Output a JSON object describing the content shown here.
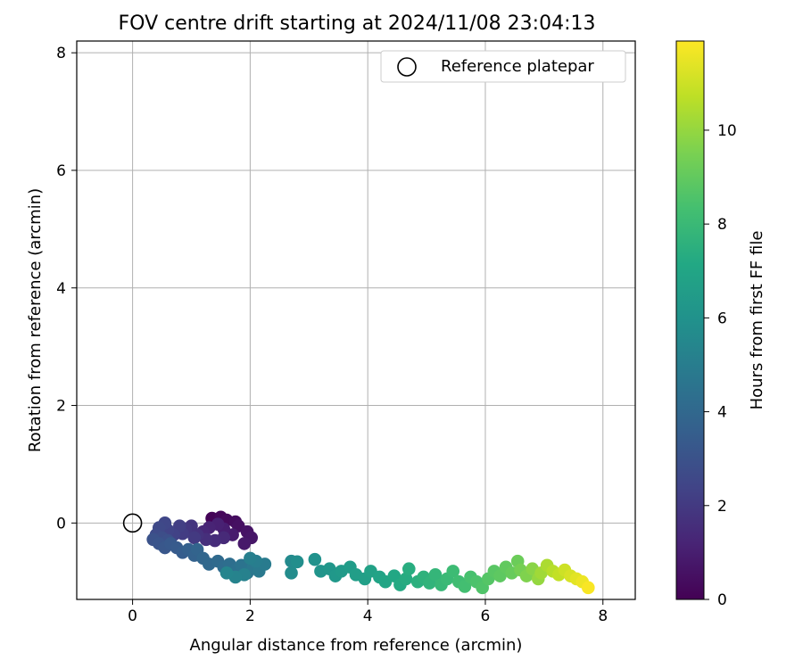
{
  "chart_data": {
    "type": "scatter",
    "title": "FOV centre drift starting at 2024/11/08 23:04:13",
    "xlabel": "Angular distance from reference (arcmin)",
    "ylabel": "Rotation from reference (arcmin)",
    "xlim": [
      -0.95,
      8.55
    ],
    "ylim": [
      -1.3,
      8.2
    ],
    "xticks": [
      0,
      2,
      4,
      6,
      8
    ],
    "yticks": [
      0,
      2,
      4,
      6,
      8
    ],
    "grid": true,
    "legend": {
      "placement": "top-right",
      "entries": [
        "Reference platepar"
      ]
    },
    "colorbar": {
      "label": "Hours from first FF file",
      "range": [
        0,
        11.9
      ],
      "ticks": [
        0,
        2,
        4,
        6,
        8,
        10
      ],
      "colormap": "viridis"
    },
    "reference_point": {
      "label": "Reference platepar",
      "x": 0,
      "y": 0
    },
    "series": [
      {
        "values_fields": [
          "x",
          "y",
          "hours"
        ],
        "points": [
          [
            1.35,
            0.08,
            0.1
          ],
          [
            1.5,
            0.1,
            0.2
          ],
          [
            1.6,
            0.05,
            0.3
          ],
          [
            1.75,
            0.02,
            0.4
          ],
          [
            1.8,
            -0.05,
            0.5
          ],
          [
            1.95,
            -0.15,
            0.6
          ],
          [
            2.02,
            -0.25,
            0.7
          ],
          [
            1.9,
            -0.35,
            0.8
          ],
          [
            1.7,
            -0.2,
            0.9
          ],
          [
            1.55,
            -0.1,
            1.0
          ],
          [
            1.45,
            -0.02,
            1.1
          ],
          [
            1.3,
            -0.08,
            1.2
          ],
          [
            1.2,
            -0.15,
            1.3
          ],
          [
            1.55,
            -0.25,
            1.4
          ],
          [
            1.4,
            -0.3,
            1.5
          ],
          [
            1.25,
            -0.28,
            1.6
          ],
          [
            1.1,
            -0.2,
            1.7
          ],
          [
            1.0,
            -0.05,
            1.8
          ],
          [
            0.9,
            -0.1,
            1.9
          ],
          [
            1.05,
            -0.25,
            2.0
          ],
          [
            0.85,
            -0.18,
            2.1
          ],
          [
            0.8,
            -0.05,
            2.2
          ],
          [
            0.7,
            -0.2,
            2.3
          ],
          [
            0.6,
            -0.12,
            2.4
          ],
          [
            0.55,
            0.0,
            2.5
          ],
          [
            0.45,
            -0.08,
            2.6
          ],
          [
            0.4,
            -0.2,
            2.7
          ],
          [
            0.5,
            -0.25,
            2.8
          ],
          [
            0.6,
            -0.3,
            2.9
          ],
          [
            0.35,
            -0.28,
            3.0
          ],
          [
            0.45,
            -0.35,
            3.1
          ],
          [
            0.55,
            -0.42,
            3.2
          ],
          [
            0.65,
            -0.35,
            3.3
          ],
          [
            0.75,
            -0.42,
            3.4
          ],
          [
            0.85,
            -0.5,
            3.5
          ],
          [
            0.95,
            -0.45,
            3.6
          ],
          [
            1.05,
            -0.55,
            3.7
          ],
          [
            1.1,
            -0.45,
            3.8
          ],
          [
            1.2,
            -0.6,
            3.9
          ],
          [
            1.3,
            -0.7,
            4.0
          ],
          [
            1.45,
            -0.65,
            4.1
          ],
          [
            1.55,
            -0.75,
            4.2
          ],
          [
            1.65,
            -0.7,
            4.3
          ],
          [
            1.75,
            -0.8,
            4.4
          ],
          [
            1.85,
            -0.72,
            4.5
          ],
          [
            1.95,
            -0.85,
            4.6
          ],
          [
            2.05,
            -0.75,
            4.7
          ],
          [
            2.15,
            -0.82,
            4.8
          ],
          [
            2.25,
            -0.7,
            4.9
          ],
          [
            2.1,
            -0.65,
            5.0
          ],
          [
            2.0,
            -0.6,
            5.1
          ],
          [
            1.9,
            -0.88,
            5.2
          ],
          [
            1.75,
            -0.92,
            5.3
          ],
          [
            1.6,
            -0.85,
            5.4
          ],
          [
            2.7,
            -0.65,
            5.6
          ],
          [
            2.7,
            -0.85,
            5.7
          ],
          [
            2.8,
            -0.66,
            5.8
          ],
          [
            3.1,
            -0.62,
            6.0
          ],
          [
            3.2,
            -0.82,
            6.1
          ],
          [
            3.35,
            -0.78,
            6.2
          ],
          [
            3.45,
            -0.9,
            6.3
          ],
          [
            3.55,
            -0.82,
            6.4
          ],
          [
            3.7,
            -0.75,
            6.5
          ],
          [
            3.8,
            -0.88,
            6.6
          ],
          [
            3.95,
            -0.95,
            6.7
          ],
          [
            4.05,
            -0.82,
            6.8
          ],
          [
            4.2,
            -0.92,
            6.9
          ],
          [
            4.3,
            -1.0,
            7.0
          ],
          [
            4.45,
            -0.9,
            7.1
          ],
          [
            4.55,
            -1.05,
            7.2
          ],
          [
            4.65,
            -0.95,
            7.3
          ],
          [
            4.7,
            -0.78,
            7.4
          ],
          [
            4.85,
            -1.0,
            7.5
          ],
          [
            4.95,
            -0.92,
            7.6
          ],
          [
            5.05,
            -1.02,
            7.7
          ],
          [
            5.15,
            -0.88,
            7.8
          ],
          [
            5.25,
            -1.05,
            7.9
          ],
          [
            5.35,
            -0.95,
            8.0
          ],
          [
            5.45,
            -0.82,
            8.1
          ],
          [
            5.55,
            -1.0,
            8.2
          ],
          [
            5.65,
            -1.08,
            8.3
          ],
          [
            5.75,
            -0.92,
            8.4
          ],
          [
            5.85,
            -1.0,
            8.5
          ],
          [
            5.95,
            -1.1,
            8.6
          ],
          [
            6.05,
            -0.95,
            8.7
          ],
          [
            6.15,
            -0.82,
            8.8
          ],
          [
            6.25,
            -0.9,
            8.9
          ],
          [
            6.35,
            -0.75,
            9.0
          ],
          [
            6.45,
            -0.85,
            9.1
          ],
          [
            6.55,
            -0.65,
            9.2
          ],
          [
            6.6,
            -0.8,
            9.4
          ],
          [
            6.7,
            -0.9,
            9.6
          ],
          [
            6.8,
            -0.78,
            9.8
          ],
          [
            6.9,
            -0.95,
            10.0
          ],
          [
            6.95,
            -0.85,
            10.2
          ],
          [
            7.05,
            -0.72,
            10.4
          ],
          [
            7.15,
            -0.82,
            10.6
          ],
          [
            7.25,
            -0.88,
            10.8
          ],
          [
            7.35,
            -0.8,
            11.0
          ],
          [
            7.45,
            -0.9,
            11.2
          ],
          [
            7.55,
            -0.95,
            11.4
          ],
          [
            7.65,
            -1.0,
            11.6
          ],
          [
            7.75,
            -1.1,
            11.8
          ]
        ]
      }
    ]
  }
}
